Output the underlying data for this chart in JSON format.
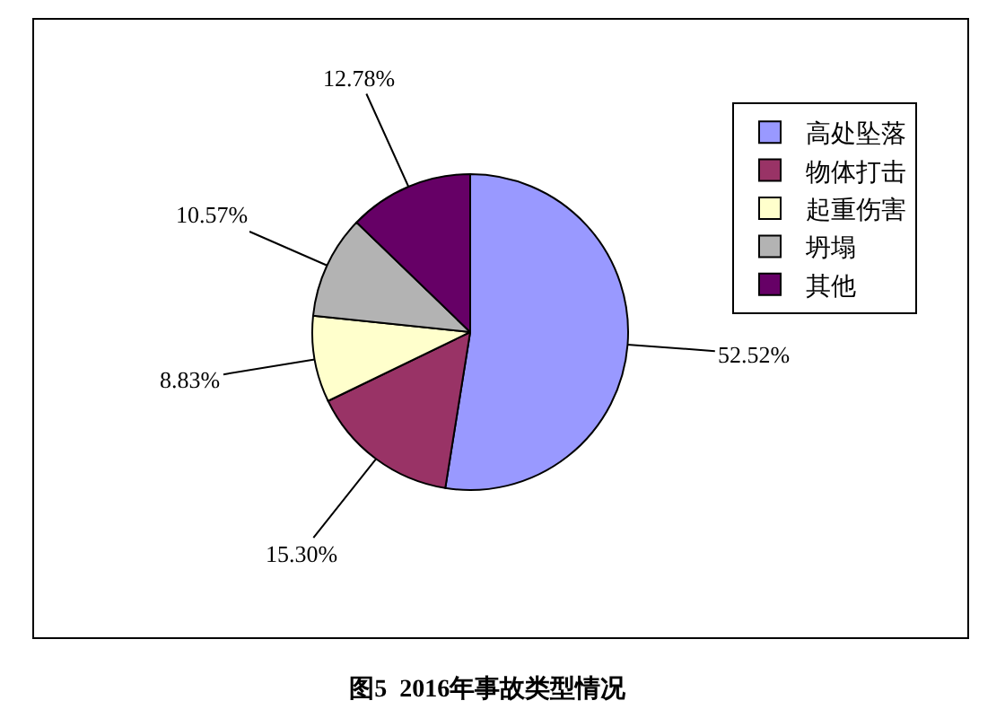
{
  "chart_data": {
    "type": "pie",
    "title": "图5  2016年事故类型情况",
    "categories": [
      "高处坠落",
      "物体打击",
      "起重伤害",
      "坍塌",
      "其他"
    ],
    "values": [
      52.52,
      15.3,
      8.83,
      10.57,
      12.78
    ],
    "colors": [
      "#9999ff",
      "#993366",
      "#ffffcc",
      "#b3b3b3",
      "#660066"
    ],
    "value_labels": [
      "52.52%",
      "15.30%",
      "8.83%",
      "10.57%",
      "12.78%"
    ],
    "legend": "right"
  }
}
